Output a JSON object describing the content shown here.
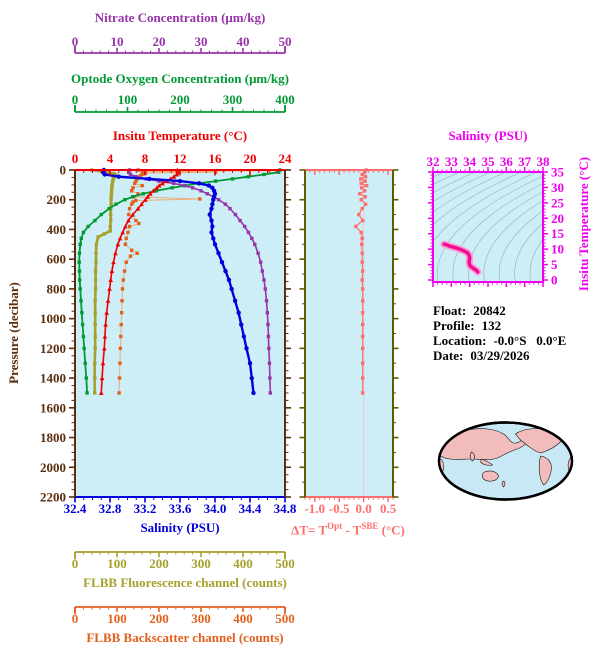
{
  "colors": {
    "plot_bg": "#cdeef7",
    "nitrate": "#9933aa",
    "oxygen": "#009933",
    "temperature": "#ee0000",
    "pressure": "#5a2d0c",
    "salinity": "#0000dd",
    "fluorescence": "#a6a12d",
    "backscatter": "#e2601c",
    "backscatter_line": "#e8b07a",
    "delta": "#ff6e6e",
    "delta_side_axis": "#5c5c00",
    "magenta": "#ee00ee",
    "ts_curve": "#ec0f98",
    "ts_curve_halo": "#ff9ad2",
    "contour": "#9fb3bd",
    "map_ocean": "#c8e8f5",
    "map_land": "#f2bcbc",
    "map_outline": "#000000"
  },
  "info": {
    "float_label": "Float:",
    "float_value": "20842",
    "profile_label": "Profile:",
    "profile_value": "132",
    "location_label": "Location:",
    "location_value": "-0.0°S   0.0°E",
    "date_label": "Date:",
    "date_value": "03/29/2026"
  },
  "chart_data": [
    {
      "type": "line",
      "title": "Float profile plot",
      "y_axis": {
        "label": "Pressure (decibar)",
        "range": [
          0,
          2200
        ],
        "ticks": [
          0,
          200,
          400,
          600,
          800,
          1000,
          1200,
          1400,
          1600,
          1800,
          2000,
          2200
        ],
        "tick_labels": [
          "0",
          "200",
          "400",
          "600",
          "800",
          "1000",
          "1200",
          "1400",
          "1600",
          "1800",
          "2000",
          "2200"
        ],
        "minor_step": 50,
        "color": "#5a2d0c"
      },
      "x_axes": [
        {
          "id": "nitrate",
          "label": "Nitrate Concentration (μm/kg)",
          "range": [
            0,
            50
          ],
          "ticks": [
            0,
            10,
            20,
            30,
            40,
            50
          ],
          "tick_labels": [
            "0",
            "10",
            "20",
            "30",
            "40",
            "50"
          ],
          "minor_step": 2,
          "color": "#9933aa"
        },
        {
          "id": "oxygen",
          "label": "Optode Oxygen Concentration (μm/kg)",
          "range": [
            0,
            400
          ],
          "ticks": [
            0,
            100,
            200,
            300,
            400
          ],
          "tick_labels": [
            "0",
            "100",
            "200",
            "300",
            "400"
          ],
          "minor_step": 20,
          "color": "#009933"
        },
        {
          "id": "temperature",
          "label": "Insitu Temperature (°C)",
          "range": [
            0,
            24
          ],
          "ticks": [
            0,
            4,
            8,
            12,
            16,
            20,
            24
          ],
          "tick_labels": [
            "0",
            "4",
            "8",
            "12",
            "16",
            "20",
            "24"
          ],
          "minor_step": 1,
          "color": "#ee0000"
        },
        {
          "id": "salinity",
          "label": "Salinity (PSU)",
          "range": [
            32.4,
            34.8
          ],
          "ticks": [
            32.4,
            32.8,
            33.2,
            33.6,
            34.0,
            34.4,
            34.8
          ],
          "tick_labels": [
            "32.4",
            "32.8",
            "33.2",
            "33.6",
            "34.0",
            "34.4",
            "34.8"
          ],
          "minor_step": 0.1,
          "color": "#0000dd"
        },
        {
          "id": "fluorescence",
          "label": "FLBB Fluorescence channel (counts)",
          "range": [
            0,
            500
          ],
          "ticks": [
            0,
            100,
            200,
            300,
            400,
            500
          ],
          "tick_labels": [
            "0",
            "100",
            "200",
            "300",
            "400",
            "500"
          ],
          "minor_step": 20,
          "color": "#a6a12d"
        },
        {
          "id": "backscatter",
          "label": "FLBB Backscatter channel (counts)",
          "range": [
            0,
            500
          ],
          "ticks": [
            0,
            100,
            200,
            300,
            400,
            500
          ],
          "tick_labels": [
            "0",
            "100",
            "200",
            "300",
            "400",
            "500"
          ],
          "minor_step": 20,
          "color": "#e2601c"
        }
      ],
      "series": [
        {
          "name": "FLBB Fluorescence",
          "axis": "fluorescence",
          "color": "#a6a12d",
          "marker": "square",
          "line_width": 2.6,
          "pressure": [
            0,
            8,
            16,
            24,
            32,
            40,
            50,
            60,
            75,
            90,
            105,
            120,
            140,
            160,
            180,
            200,
            230,
            260,
            300,
            340,
            380,
            410,
            430,
            450,
            500,
            560,
            620,
            680,
            740,
            800,
            880,
            960,
            1040,
            1120,
            1200,
            1300,
            1400,
            1500
          ],
          "values": [
            40,
            62,
            80,
            92,
            97,
            95,
            93,
            91,
            90,
            89,
            88,
            88,
            87,
            87,
            86,
            86,
            86,
            85,
            85,
            85,
            84,
            84,
            70,
            55,
            51,
            50,
            50,
            49,
            49,
            49,
            48,
            48,
            48,
            48,
            48,
            47,
            47,
            47
          ]
        },
        {
          "name": "FLBB Backscatter",
          "axis": "backscatter",
          "color": "#e2601c",
          "marker": "square",
          "line_width": 1,
          "pressure": [
            0,
            5,
            10,
            15,
            20,
            30,
            40,
            50,
            60,
            75,
            90,
            105,
            120,
            140,
            160,
            180,
            195,
            205,
            215,
            230,
            260,
            300,
            340,
            360,
            380,
            420,
            460,
            500,
            540,
            560,
            580,
            620,
            680,
            740,
            800,
            880,
            960,
            1040,
            1120,
            1200,
            1300,
            1400,
            1500
          ],
          "values": [
            150,
            462,
            160,
            335,
            168,
            160,
            155,
            150,
            148,
            145,
            142,
            160,
            138,
            135,
            150,
            140,
            297,
            145,
            138,
            135,
            130,
            128,
            145,
            152,
            130,
            126,
            122,
            120,
            135,
            148,
            132,
            122,
            118,
            115,
            113,
            112,
            111,
            110,
            109,
            108,
            107,
            106,
            105
          ]
        },
        {
          "name": "Optode Oxygen",
          "axis": "oxygen",
          "color": "#009933",
          "marker": "square",
          "line_width": 1.8,
          "pressure": [
            0,
            15,
            30,
            45,
            60,
            75,
            90,
            105,
            120,
            140,
            160,
            180,
            200,
            230,
            260,
            300,
            340,
            380,
            420,
            460,
            500,
            560,
            620,
            680,
            740,
            800,
            880,
            960,
            1040,
            1120,
            1200,
            1300,
            1400,
            1500
          ],
          "values": [
            390,
            388,
            360,
            330,
            300,
            268,
            235,
            210,
            185,
            155,
            130,
            110,
            95,
            78,
            65,
            50,
            38,
            25,
            16,
            12,
            10,
            8.5,
            8,
            8.5,
            9,
            10,
            11.5,
            13,
            14.5,
            16,
            17.5,
            19.5,
            21.5,
            23
          ]
        },
        {
          "name": "Nitrate",
          "axis": "nitrate",
          "color": "#9933aa",
          "marker": "square",
          "line_width": 1.6,
          "pressure": [
            0,
            15,
            30,
            45,
            60,
            75,
            90,
            105,
            120,
            140,
            160,
            180,
            200,
            230,
            260,
            300,
            340,
            380,
            420,
            460,
            500,
            560,
            620,
            680,
            740,
            800,
            880,
            960,
            1040,
            1120,
            1200,
            1300,
            1400,
            1500
          ],
          "values": [
            13,
            12.8,
            13.2,
            14.5,
            17,
            20,
            23.5,
            26,
            28,
            30,
            31.5,
            33,
            34.2,
            35.8,
            36.9,
            38.2,
            39.3,
            40.4,
            41.3,
            42.1,
            42.8,
            43.6,
            44.2,
            44.6,
            45,
            45.3,
            45.6,
            45.8,
            45.95,
            46.05,
            46.15,
            46.3,
            46.4,
            46.5
          ]
        },
        {
          "name": "Insitu Temperature",
          "axis": "temperature",
          "color": "#ee0000",
          "marker": "triangle",
          "line_width": 1.6,
          "pressure": [
            0,
            15,
            30,
            45,
            60,
            75,
            90,
            105,
            120,
            140,
            160,
            180,
            200,
            230,
            260,
            300,
            340,
            380,
            420,
            460,
            500,
            560,
            620,
            680,
            740,
            800,
            880,
            960,
            1040,
            1120,
            1200,
            1300,
            1400,
            1500
          ],
          "values": [
            11.7,
            11.72,
            11.65,
            11.3,
            10.9,
            10.5,
            10.0,
            9.62,
            9.35,
            8.95,
            8.6,
            8.3,
            8.05,
            7.6,
            7.2,
            6.6,
            6.1,
            5.75,
            5.45,
            5.15,
            4.9,
            4.62,
            4.4,
            4.22,
            4.08,
            3.95,
            3.78,
            3.62,
            3.5,
            3.42,
            3.35,
            3.2,
            3.1,
            3.0
          ]
        },
        {
          "name": "Salinity",
          "axis": "salinity",
          "color": "#0000dd",
          "marker": "circle",
          "line_width": 2.4,
          "pressure": [
            0,
            15,
            30,
            45,
            60,
            75,
            90,
            105,
            120,
            140,
            160,
            180,
            200,
            230,
            260,
            300,
            340,
            380,
            420,
            460,
            500,
            560,
            620,
            680,
            740,
            800,
            880,
            960,
            1040,
            1120,
            1200,
            1300,
            1400,
            1500
          ],
          "values": [
            32.73,
            32.72,
            32.74,
            32.9,
            33.25,
            33.6,
            33.82,
            33.93,
            33.97,
            33.99,
            34.0,
            33.99,
            33.98,
            33.97,
            33.96,
            33.94,
            33.96,
            33.97,
            33.96,
            33.98,
            34.0,
            34.04,
            34.08,
            34.12,
            34.16,
            34.19,
            34.23,
            34.27,
            34.3,
            34.33,
            34.36,
            34.4,
            34.42,
            34.44
          ]
        }
      ]
    },
    {
      "type": "line",
      "title": "Optode minus SBE temperature difference",
      "xlabel_parts": {
        "p1": "ΔT= T",
        "sup1": "Opt",
        "p2": " - T",
        "sup2": "SBE",
        "p3": " (°C)"
      },
      "x_axis": {
        "range": [
          -1.2,
          0.6
        ],
        "ticks": [
          -1.0,
          -0.5,
          0.0,
          0.5
        ],
        "tick_labels": [
          "-1.0",
          "-0.5",
          "0.0",
          "0.5"
        ],
        "minor_step": 0.1,
        "color": "#ff6e6e"
      },
      "y_axis": {
        "range": [
          0,
          2200
        ],
        "major_step": 200,
        "minor_step": 100,
        "color": "#5c5c00"
      },
      "series": [
        {
          "name": "ΔT",
          "color": "#ff6e6e",
          "marker": "square",
          "line_width": 1.2,
          "pressure": [
            0,
            15,
            30,
            45,
            60,
            75,
            90,
            105,
            120,
            140,
            160,
            180,
            200,
            230,
            260,
            300,
            340,
            380,
            420,
            460,
            500,
            560,
            620,
            680,
            740,
            800,
            880,
            960,
            1040,
            1120,
            1200,
            1300,
            1400,
            1500
          ],
          "values": [
            0.05,
            0.02,
            -0.03,
            0.04,
            -0.06,
            0.03,
            -0.05,
            0.06,
            -0.04,
            0.02,
            -0.08,
            0.03,
            -0.05,
            0.04,
            -0.03,
            -0.1,
            -0.02,
            -0.16,
            -0.05,
            -0.03,
            -0.04,
            -0.03,
            -0.03,
            -0.02,
            -0.03,
            -0.02,
            -0.02,
            -0.02,
            -0.02,
            -0.02,
            -0.02,
            -0.02,
            -0.02,
            -0.02
          ]
        }
      ]
    },
    {
      "type": "line",
      "title": "Temperature-Salinity diagram",
      "x_axis": {
        "label": "Salinity (PSU)",
        "range": [
          32,
          38
        ],
        "ticks": [
          32,
          33,
          34,
          35,
          36,
          37,
          38
        ],
        "tick_labels": [
          "32",
          "33",
          "34",
          "35",
          "36",
          "37",
          "38"
        ],
        "minor_step": 0.25,
        "color": "#ee00ee"
      },
      "y_axis": {
        "label": "Insitu Temperature (°C)",
        "range": [
          0,
          35
        ],
        "ticks": [
          0,
          5,
          10,
          15,
          20,
          25,
          30,
          35
        ],
        "tick_labels": [
          "0",
          "5",
          "10",
          "15",
          "20",
          "25",
          "30",
          "35"
        ],
        "minor_step": 1,
        "color": "#ee00ee"
      },
      "curve": [
        [
          32.6,
          11.6
        ],
        [
          32.73,
          11.4
        ],
        [
          32.9,
          11.0
        ],
        [
          33.2,
          10.5
        ],
        [
          33.45,
          10.0
        ],
        [
          33.7,
          9.4
        ],
        [
          33.88,
          8.8
        ],
        [
          33.97,
          8.0
        ],
        [
          34.0,
          7.2
        ],
        [
          33.98,
          6.4
        ],
        [
          33.97,
          5.6
        ],
        [
          34.0,
          4.9
        ],
        [
          34.05,
          4.4
        ],
        [
          34.12,
          4.1
        ],
        [
          34.2,
          3.8
        ],
        [
          34.28,
          3.5
        ],
        [
          34.35,
          3.2
        ],
        [
          34.4,
          2.9
        ],
        [
          34.44,
          2.6
        ]
      ],
      "contours": {
        "levels": [
          21.3,
          21.98,
          22.66,
          23.34,
          24.02,
          24.7,
          25.38,
          26.06,
          26.74,
          27.42,
          28.1,
          28.78,
          29.46,
          30.14
        ]
      }
    }
  ]
}
